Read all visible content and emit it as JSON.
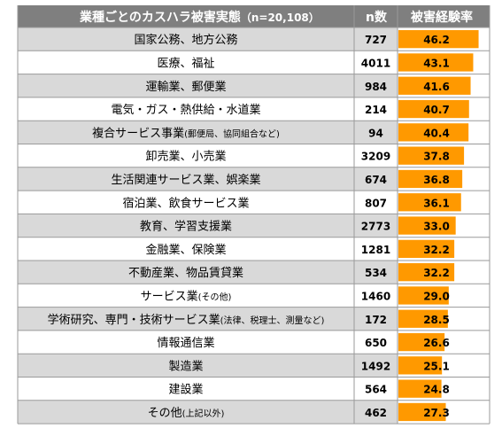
{
  "chart_data": {
    "type": "table",
    "title": "業種ごとのカスハラ被害実態",
    "sample_note": "（n=20,108）",
    "headers": {
      "industry": "",
      "n": "n数",
      "rate": "被害経験率"
    },
    "bar_max": 50,
    "colors": {
      "header_bg": "#7f7f7f",
      "row_odd": "#d9d9d9",
      "row_even": "#ffffff",
      "bar": "#ff9900",
      "grid": "#9a9a9a"
    },
    "rows": [
      {
        "industry": "国家公務、地方公務",
        "note": "",
        "n": "727",
        "rate": 46.2
      },
      {
        "industry": "医療、福祉",
        "note": "",
        "n": "4011",
        "rate": 43.1
      },
      {
        "industry": "運輸業、郵便業",
        "note": "",
        "n": "984",
        "rate": 41.6
      },
      {
        "industry": "電気・ガス・熱供給・水道業",
        "note": "",
        "n": "214",
        "rate": 40.7
      },
      {
        "industry": "複合サービス事業",
        "note": "(郵便局、協同組合など)",
        "n": "94",
        "rate": 40.4
      },
      {
        "industry": "卸売業、小売業",
        "note": "",
        "n": "3209",
        "rate": 37.8
      },
      {
        "industry": "生活関連サービス業、娯楽業",
        "note": "",
        "n": "674",
        "rate": 36.8
      },
      {
        "industry": "宿泊業、飲食サービス業",
        "note": "",
        "n": "807",
        "rate": 36.1
      },
      {
        "industry": "教育、学習支援業",
        "note": "",
        "n": "2773",
        "rate": 33.0
      },
      {
        "industry": "金融業、保険業",
        "note": "",
        "n": "1281",
        "rate": 32.2
      },
      {
        "industry": "不動産業、物品賃貸業",
        "note": "",
        "n": "534",
        "rate": 32.2
      },
      {
        "industry": "サービス業",
        "note": "(その他)",
        "n": "1460",
        "rate": 29.0
      },
      {
        "industry": "学術研究、専門・技術サービス業",
        "note": "(法律、税理士、測量など)",
        "n": "172",
        "rate": 28.5
      },
      {
        "industry": "情報通信業",
        "note": "",
        "n": "650",
        "rate": 26.6
      },
      {
        "industry": "製造業",
        "note": "",
        "n": "1492",
        "rate": 25.1
      },
      {
        "industry": "建設業",
        "note": "",
        "n": "564",
        "rate": 24.8
      },
      {
        "industry": "その他",
        "note": "(上記以外)",
        "n": "462",
        "rate": 27.3
      }
    ]
  }
}
